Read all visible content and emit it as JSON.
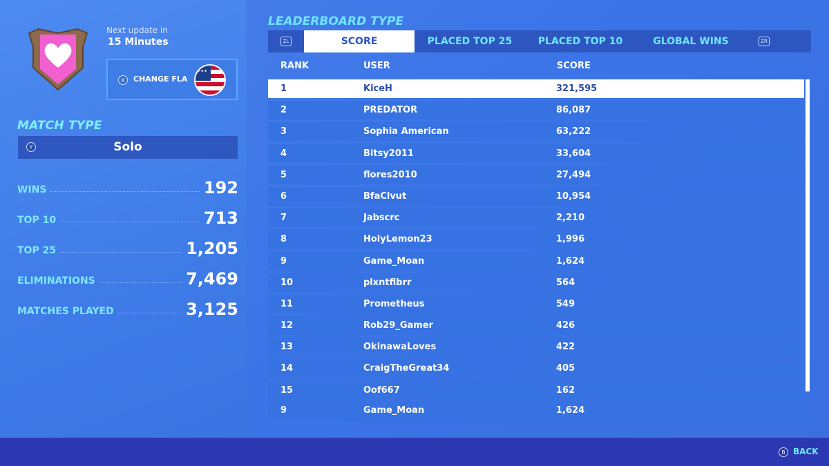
{
  "left": {
    "next_update_label": "Next update in",
    "next_update_value": "15 Minutes",
    "change_flag": {
      "button_glyph": "X",
      "label": "CHANGE FLAG"
    },
    "match_type": {
      "heading": "MATCH TYPE",
      "button_glyph": "Y",
      "value": "Solo"
    },
    "stats": [
      {
        "label": "WINS",
        "value": "192"
      },
      {
        "label": "TOP 10",
        "value": "713"
      },
      {
        "label": "TOP 25",
        "value": "1,205"
      },
      {
        "label": "ELIMINATIONS",
        "value": "7,469"
      },
      {
        "label": "MATCHES PLAYED",
        "value": "3,125"
      }
    ]
  },
  "leaderboard": {
    "heading": "LEADERBOARD TYPE",
    "left_trigger": "ZL",
    "right_trigger": "ZR",
    "tabs": [
      {
        "label": "SCORE",
        "active": true
      },
      {
        "label": "PLACED TOP 25",
        "active": false
      },
      {
        "label": "PLACED TOP 10",
        "active": false
      },
      {
        "label": "GLOBAL WINS",
        "active": false
      }
    ],
    "columns": {
      "rank": "RANK",
      "user": "USER",
      "score": "SCORE"
    },
    "rows": [
      {
        "rank": "1",
        "user": "KiceH",
        "score": "321,595",
        "highlight": true
      },
      {
        "rank": "2",
        "user": "PREDATOR",
        "score": "86,087"
      },
      {
        "rank": "3",
        "user": "Sophia American",
        "score": "63,222"
      },
      {
        "rank": "4",
        "user": "Bitsy2011",
        "score": "33,604"
      },
      {
        "rank": "5",
        "user": "flores2010",
        "score": "27,494"
      },
      {
        "rank": "6",
        "user": "BfaClvut",
        "score": "10,954"
      },
      {
        "rank": "7",
        "user": "Jabscrc",
        "score": "2,210"
      },
      {
        "rank": "8",
        "user": "HolyLemon23",
        "score": "1,996"
      },
      {
        "rank": "9",
        "user": "Game_Moan",
        "score": "1,624"
      },
      {
        "rank": "10",
        "user": "plxntfibrr",
        "score": "564"
      },
      {
        "rank": "11",
        "user": "Prometheus",
        "score": "549"
      },
      {
        "rank": "12",
        "user": "Rob29_Gamer",
        "score": "426"
      },
      {
        "rank": "13",
        "user": "OkinawaLoves",
        "score": "422"
      },
      {
        "rank": "14",
        "user": "CraigTheGreat34",
        "score": "405"
      },
      {
        "rank": "15",
        "user": "Oof667",
        "score": "162"
      }
    ],
    "pinned_row": {
      "rank": "9",
      "user": "Game_Moan",
      "score": "1,624"
    }
  },
  "footer": {
    "button_glyph": "B",
    "back_label": "BACK"
  },
  "colors": {
    "accent_cyan": "#6fe6ff",
    "panel_dark": "#2d56c0",
    "row_blue": "#3772e2",
    "footer_bar": "#2c38b2"
  },
  "icons": {
    "crest": "heart-banner-crest-icon",
    "flag": "us-flag-icon"
  }
}
